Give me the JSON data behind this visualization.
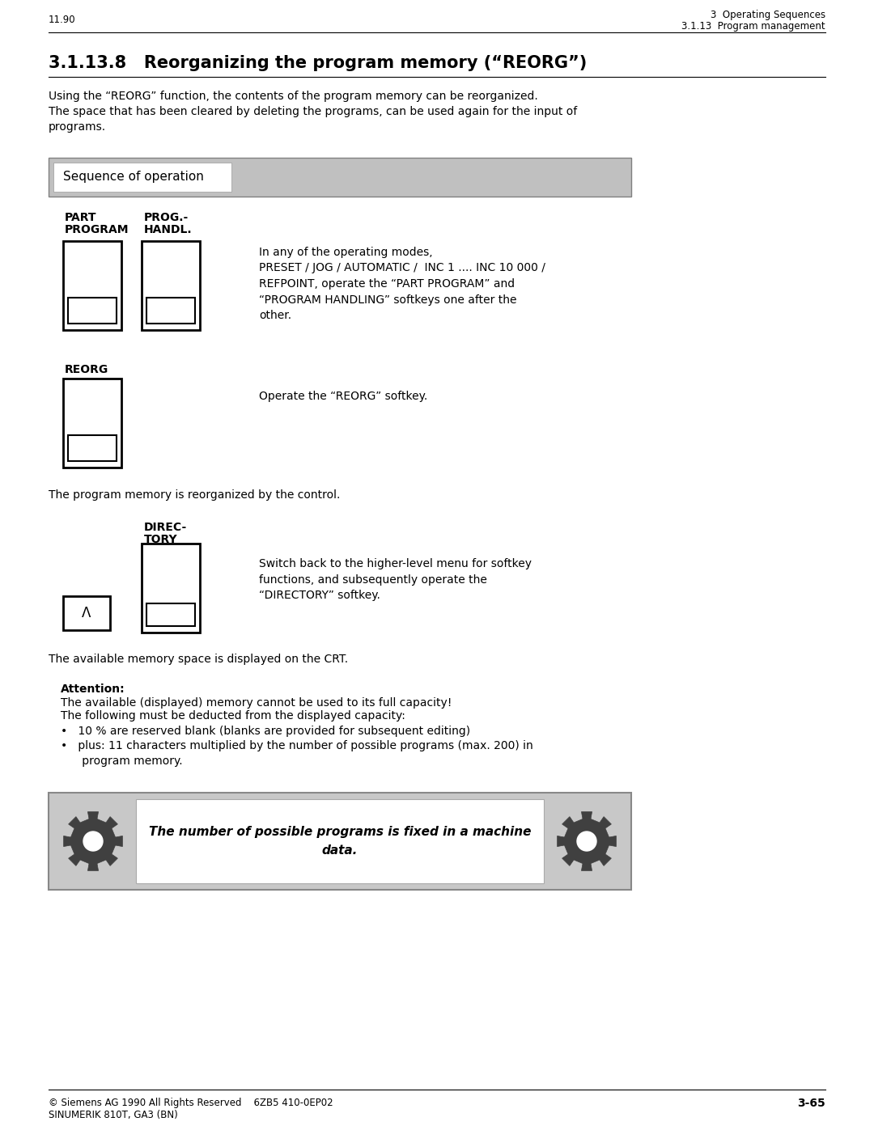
{
  "page_num_left": "11.90",
  "page_header_right1": "3  Operating Sequences",
  "page_header_right2": "3.1.13  Program management",
  "section_title": "3.1.13.8   Reorganizing the program memory (“REORG”)",
  "intro_text": "Using the “REORG” function, the contents of the program memory can be reorganized.\nThe space that has been cleared by deleting the programs, can be used again for the input of\nprograms.",
  "seq_label": "Sequence of operation",
  "label1_line1": "PART",
  "label1_line2": "PROGRAM",
  "label2_line1": "PROG.-",
  "label2_line2": "HANDL.",
  "desc1": "In any of the operating modes,\nPRESET / JOG / AUTOMATIC /  INC 1 .... INC 10 000 /\nREFPOINT, operate the “PART PROGRAM” and\n“PROGRAM HANDLING” softkeys one after the\nother.",
  "label_reorg": "REORG",
  "desc2": "Operate the “REORG” softkey.",
  "reorg_text": "The program memory is reorganized by the control.",
  "label_dir1": "DIREC-",
  "label_dir2": "TORY",
  "desc3": "Switch back to the higher-level menu for softkey\nfunctions, and subsequently operate the\n“DIRECTORY” softkey.",
  "avail_text": "The available memory space is displayed on the CRT.",
  "attention_title": "Attention:",
  "attention_text1": "The available (displayed) memory cannot be used to its full capacity!",
  "attention_text2": "The following must be deducted from the displayed capacity:",
  "bullet1": "•   10 % are reserved blank (blanks are provided for subsequent editing)",
  "bullet2": "•   plus: 11 characters multiplied by the number of possible programs (max. 200) in\n      program memory.",
  "note_text": "The number of possible programs is fixed in a machine\ndata.",
  "footer_left1": "© Siemens AG 1990 All Rights Reserved    6ZB5 410-0EP02",
  "footer_left2": "SINUMERIK 810T, GA3 (BN)",
  "footer_right": "3-65",
  "bg_color": "#ffffff",
  "text_color": "#000000"
}
